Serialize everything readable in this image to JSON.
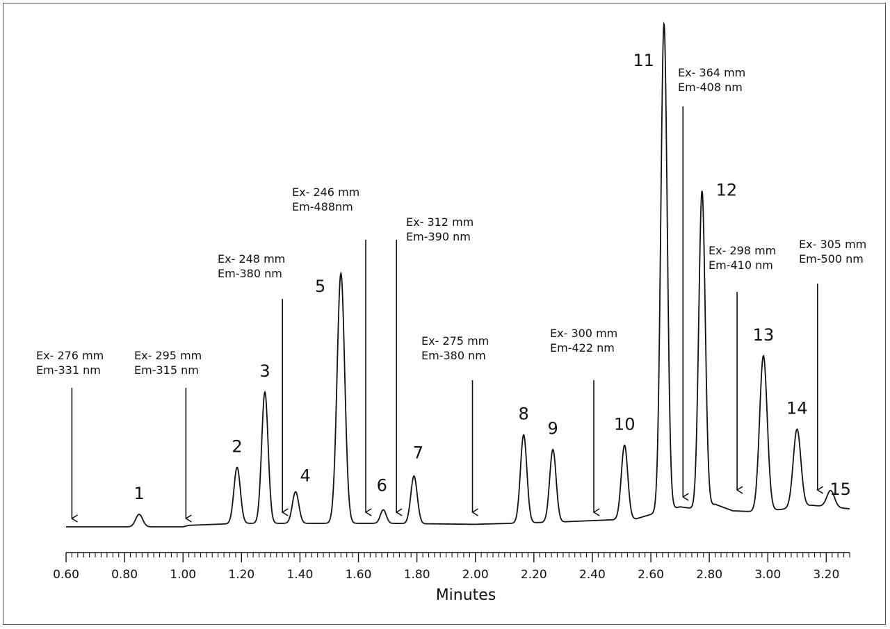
{
  "chart_data": {
    "type": "line",
    "title": "",
    "xlabel": "Minutes",
    "ylabel": "",
    "xlim": [
      0.6,
      3.28
    ],
    "ylim": [
      0,
      100
    ],
    "grid": false,
    "x_ticks": [
      "0.60",
      "0.80",
      "1.00",
      "1.20",
      "1.40",
      "1.60",
      "1.80",
      "2.00",
      "2.20",
      "2.40",
      "2.60",
      "2.80",
      "3.00",
      "3.20"
    ],
    "baseline": [
      {
        "x": 0.6,
        "y": 0
      },
      {
        "x": 1.0,
        "y": 0
      },
      {
        "x": 1.02,
        "y": 0.3
      },
      {
        "x": 1.2,
        "y": 0.7
      },
      {
        "x": 1.7,
        "y": 0.7
      },
      {
        "x": 2.0,
        "y": 0.5
      },
      {
        "x": 2.3,
        "y": 1
      },
      {
        "x": 2.55,
        "y": 1.6
      },
      {
        "x": 2.63,
        "y": 3
      },
      {
        "x": 2.7,
        "y": 4
      },
      {
        "x": 2.76,
        "y": 3.5
      },
      {
        "x": 2.82,
        "y": 4.5
      },
      {
        "x": 2.88,
        "y": 3.2
      },
      {
        "x": 2.96,
        "y": 3
      },
      {
        "x": 3.05,
        "y": 3.5
      },
      {
        "x": 3.15,
        "y": 4.3
      },
      {
        "x": 3.28,
        "y": 3.6
      }
    ],
    "peaks": [
      {
        "label": "1",
        "x": 0.85,
        "height": 2.5,
        "width": 0.012
      },
      {
        "label": "2",
        "x": 1.185,
        "height": 11.2,
        "width": 0.011
      },
      {
        "label": "3",
        "x": 1.28,
        "height": 26.2,
        "width": 0.011
      },
      {
        "label": "4",
        "x": 1.385,
        "height": 6.3,
        "width": 0.011
      },
      {
        "label": "5",
        "x": 1.54,
        "height": 49.9,
        "width": 0.013
      },
      {
        "label": "6",
        "x": 1.685,
        "height": 2.7,
        "width": 0.01
      },
      {
        "label": "7",
        "x": 1.79,
        "height": 9.5,
        "width": 0.011
      },
      {
        "label": "8",
        "x": 2.165,
        "height": 17.6,
        "width": 0.011
      },
      {
        "label": "9",
        "x": 2.265,
        "height": 14.5,
        "width": 0.011
      },
      {
        "label": "10",
        "x": 2.51,
        "height": 14.8,
        "width": 0.011
      },
      {
        "label": "11",
        "x": 2.645,
        "height": 97.2,
        "width": 0.011
      },
      {
        "label": "12",
        "x": 2.775,
        "height": 63.3,
        "width": 0.011
      },
      {
        "label": "13",
        "x": 2.985,
        "height": 31,
        "width": 0.013
      },
      {
        "label": "14",
        "x": 3.1,
        "height": 15.6,
        "width": 0.013
      },
      {
        "label": "15",
        "x": 3.215,
        "height": 3.3,
        "width": 0.013
      }
    ],
    "annotations": [
      {
        "x": 0.62,
        "line1": "Ex- 276 mm",
        "line2": "Em-331 nm"
      },
      {
        "x": 1.01,
        "line1": "Ex- 295 mm",
        "line2": "Em-315 nm"
      },
      {
        "x": 1.34,
        "line1": "Ex- 248 mm",
        "line2": "Em-380 nm"
      },
      {
        "x": 1.625,
        "line1": "Ex- 246 mm",
        "line2": "Em-488nm"
      },
      {
        "x": 1.73,
        "line1": "Ex- 312 mm",
        "line2": "Em-390 nm"
      },
      {
        "x": 1.99,
        "line1": "Ex- 275 mm",
        "line2": "Em-380 nm"
      },
      {
        "x": 2.405,
        "line1": "Ex- 300 mm",
        "line2": "Em-422 nm"
      },
      {
        "x": 2.71,
        "line1": "Ex- 364 mm",
        "line2": "Em-408 nm"
      },
      {
        "x": 2.895,
        "line1": "Ex- 298 mm",
        "line2": "Em-410 nm"
      },
      {
        "x": 3.17,
        "line1": "Ex- 305 mm",
        "line2": "Em-500 nm"
      }
    ]
  }
}
